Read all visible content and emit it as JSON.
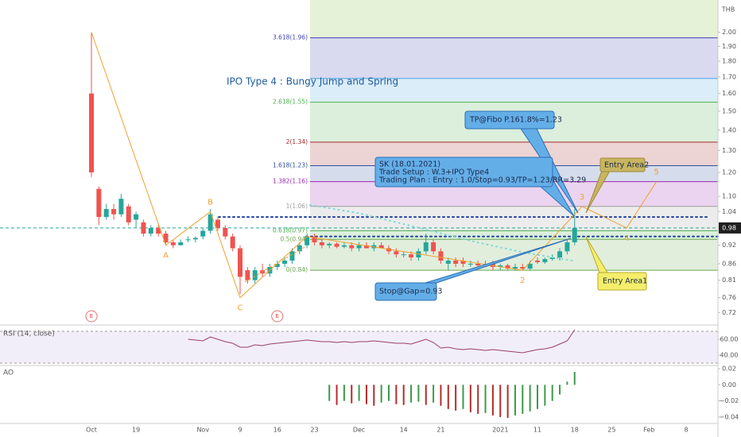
{
  "chart_data": {
    "type": "candlestick",
    "title": "IPO Type 4 : Bungy Jump and Spring",
    "currency": "THB",
    "log_scale": true,
    "up_color": "#26a69a",
    "down_color": "#ef5350",
    "categories": [
      "Oct",
      null,
      null,
      null,
      null,
      null,
      "19",
      null,
      null,
      null,
      null,
      null,
      null,
      null,
      null,
      "Nov",
      null,
      null,
      null,
      null,
      "9",
      null,
      null,
      null,
      null,
      "16",
      null,
      null,
      null,
      null,
      "23",
      null,
      null,
      null,
      null,
      null,
      "Dec",
      null,
      null,
      null,
      null,
      null,
      "14",
      null,
      null,
      null,
      null,
      "21",
      null,
      null,
      null,
      null,
      null,
      null,
      null,
      "2021",
      null,
      null,
      null,
      null,
      "11",
      null,
      null,
      null,
      null,
      "18",
      null,
      null,
      null,
      null,
      "25",
      null,
      null,
      null,
      null,
      "Feb",
      null,
      null,
      null,
      null,
      "8",
      null,
      null,
      null,
      null
    ],
    "open": [
      1.6,
      1.13,
      1.02,
      1.05,
      1.03,
      1.06,
      1.01,
      1.0,
      0.96,
      0.98,
      0.96,
      0.93,
      0.92,
      0.94,
      0.94,
      0.95,
      0.97,
      1.01,
      0.98,
      0.95,
      0.91,
      0.84,
      0.81,
      0.84,
      0.83,
      0.85,
      0.86,
      0.87,
      0.9,
      0.92,
      0.95,
      0.93,
      0.92,
      0.925,
      0.915,
      0.92,
      0.91,
      0.92,
      0.91,
      0.92,
      0.91,
      0.9,
      0.89,
      0.89,
      0.88,
      0.9,
      0.93,
      0.9,
      0.86,
      0.87,
      0.87,
      0.86,
      0.86,
      0.855,
      0.86,
      0.85,
      0.855,
      0.845,
      0.85,
      0.845,
      0.87,
      0.865,
      0.875,
      0.88,
      0.9,
      0.93,
      null,
      null,
      null,
      null,
      null,
      null,
      null,
      null,
      null,
      null,
      null,
      null,
      null,
      null,
      null,
      null,
      null,
      null,
      null
    ],
    "high": [
      2.0,
      1.14,
      1.07,
      1.07,
      1.11,
      1.07,
      1.04,
      1.01,
      0.99,
      0.99,
      0.97,
      0.94,
      0.94,
      0.95,
      0.95,
      0.98,
      1.05,
      1.02,
      0.99,
      0.96,
      0.92,
      0.85,
      0.85,
      0.86,
      0.86,
      0.87,
      0.88,
      0.91,
      0.93,
      0.96,
      0.96,
      0.94,
      0.93,
      0.93,
      0.93,
      0.93,
      0.93,
      0.93,
      0.93,
      0.93,
      0.92,
      0.91,
      0.9,
      0.9,
      0.91,
      0.96,
      0.94,
      0.91,
      0.88,
      0.88,
      0.88,
      0.87,
      0.87,
      0.87,
      0.87,
      0.86,
      0.86,
      0.86,
      0.86,
      0.87,
      0.88,
      0.88,
      0.89,
      0.91,
      0.94,
      1.05,
      null,
      null,
      null,
      null,
      null,
      null,
      null,
      null,
      null,
      null,
      null,
      null,
      null,
      null,
      null,
      null,
      null,
      null,
      null
    ],
    "low": [
      1.18,
      0.99,
      1.01,
      1.01,
      1.02,
      0.99,
      0.98,
      0.95,
      0.95,
      0.95,
      0.92,
      0.91,
      0.92,
      0.93,
      0.93,
      0.94,
      0.96,
      0.97,
      0.94,
      0.9,
      0.77,
      0.8,
      0.8,
      0.82,
      0.82,
      0.84,
      0.85,
      0.86,
      0.89,
      0.91,
      0.92,
      0.91,
      0.91,
      0.91,
      0.91,
      0.9,
      0.9,
      0.91,
      0.9,
      0.91,
      0.89,
      0.88,
      0.88,
      0.87,
      0.87,
      0.89,
      0.89,
      0.86,
      0.84,
      0.85,
      0.85,
      0.85,
      0.85,
      0.85,
      0.84,
      0.84,
      0.84,
      0.84,
      0.84,
      0.84,
      0.86,
      0.86,
      0.87,
      0.87,
      0.89,
      0.92,
      null,
      null,
      null,
      null,
      null,
      null,
      null,
      null,
      null,
      null,
      null,
      null,
      null,
      null,
      null,
      null,
      null,
      null,
      null
    ],
    "close": [
      1.2,
      1.02,
      1.05,
      1.03,
      1.09,
      1.0,
      1.03,
      0.96,
      0.98,
      0.96,
      0.93,
      0.92,
      0.93,
      0.94,
      0.945,
      0.97,
      1.03,
      0.98,
      0.95,
      0.91,
      0.82,
      0.81,
      0.84,
      0.83,
      0.85,
      0.86,
      0.87,
      0.9,
      0.92,
      0.95,
      0.93,
      0.92,
      0.925,
      0.915,
      0.92,
      0.91,
      0.92,
      0.91,
      0.92,
      0.91,
      0.9,
      0.89,
      0.89,
      0.88,
      0.9,
      0.93,
      0.9,
      0.87,
      0.87,
      0.86,
      0.86,
      0.86,
      0.855,
      0.86,
      0.85,
      0.855,
      0.845,
      0.85,
      0.845,
      0.86,
      0.865,
      0.875,
      0.88,
      0.9,
      0.93,
      0.98,
      null,
      null,
      null,
      null,
      null,
      null,
      null,
      null,
      null,
      null,
      null,
      null,
      null,
      null,
      null,
      null,
      null,
      null,
      null
    ],
    "ylim": [
      0.69,
      2.25
    ],
    "yticks": [
      {
        "value": 2.0,
        "label": "2.00"
      },
      {
        "value": 1.9,
        "label": "1.90"
      },
      {
        "value": 1.8,
        "label": "1.80"
      },
      {
        "value": 1.7,
        "label": "1.70"
      },
      {
        "value": 1.6,
        "label": "1.60"
      },
      {
        "value": 1.5,
        "label": "1.50"
      },
      {
        "value": 1.4,
        "label": "1.40"
      },
      {
        "value": 1.3,
        "label": "1.30"
      },
      {
        "value": 1.2,
        "label": "1.20"
      },
      {
        "value": 1.1,
        "label": "1.10"
      },
      1.04,
      0.92,
      0.86,
      0.81,
      0.76,
      0.72
    ],
    "current_price": 0.98,
    "fib_levels": [
      {
        "value": 1.96,
        "label": "3.618(1.96)",
        "color": "#3f3fb0"
      },
      {
        "value": 1.69,
        "color": "#4aa3df"
      },
      {
        "value": 1.55,
        "label": "2.618(1.55)",
        "color": "#4caf50"
      },
      {
        "value": 1.34,
        "label": "2(1.34)",
        "color": "#a52a2a"
      },
      {
        "value": 1.23,
        "label": "1.618(1.23)",
        "color": "#2e4f9a"
      },
      {
        "value": 1.16,
        "label": "1.382(1.16)",
        "color": "#9c27b0"
      },
      {
        "value": 1.06,
        "label": "1(1.06)",
        "color": "#9e9e9e"
      },
      {
        "value": 0.97,
        "label": "0.618(0.97)",
        "color": "#4caf50"
      },
      {
        "value": 0.94,
        "label": "0.5(0.94)",
        "color": "#6aa84f"
      },
      {
        "value": 0.84,
        "label": "0(0.84)",
        "color": "#6aa84f"
      }
    ],
    "hlines": [
      {
        "value": 1.02,
        "color": "#1e3fa0"
      },
      {
        "value": 0.95,
        "color": "#1e3fa0"
      }
    ],
    "wave": {
      "x": [
        0,
        10,
        16,
        20,
        29,
        58,
        66,
        72,
        76
      ],
      "values": [
        2.0,
        0.92,
        1.04,
        0.76,
        0.95,
        0.84,
        1.06,
        0.98,
        1.16
      ],
      "labels": [
        null,
        "A",
        "B",
        "C",
        null,
        "2",
        "3",
        "4",
        "5"
      ],
      "color": "#f0a030"
    },
    "earnings": {
      "x": [
        0,
        25
      ],
      "labels": [
        "E",
        "E"
      ]
    },
    "callouts": [
      {
        "lines": [
          "TP@Fibo P.161.8%=1.23"
        ]
      },
      {
        "lines": [
          "SK (18.01.2021)",
          "Trade Setup : W.3+IPO Type4",
          "Trading Plan : Entry : 1.0/Stop=0.93/TP=1.23/RR=3.29"
        ]
      },
      {
        "lines": [
          "Entry Area2"
        ]
      },
      {
        "lines": [
          "Entry Area1"
        ]
      },
      {
        "lines": [
          "Stop@Gap=0.93"
        ]
      }
    ],
    "indicators": [
      {
        "type": "line",
        "title": "RSI (14, close)",
        "color": "#9c3d6b",
        "band": [
          30,
          70
        ],
        "ylim": [
          29,
          74
        ],
        "yticks": [
          {
            "value": 60,
            "label": "60.00"
          },
          {
            "value": 40,
            "label": "40.00"
          }
        ],
        "values": [
          null,
          null,
          null,
          null,
          null,
          null,
          null,
          null,
          null,
          null,
          null,
          null,
          null,
          60,
          59,
          58,
          63,
          60,
          57,
          55,
          50,
          50,
          53,
          52,
          54,
          55,
          56,
          57,
          58,
          59,
          58,
          57,
          57,
          56,
          57,
          56,
          57,
          57,
          58,
          57,
          56,
          55,
          55,
          54,
          57,
          60,
          56,
          49,
          50,
          48,
          47,
          48,
          47,
          46,
          47,
          46,
          45,
          44,
          43,
          45,
          47,
          48,
          50,
          54,
          58,
          72,
          null,
          null,
          null,
          null,
          null,
          null,
          null,
          null,
          null,
          null,
          null,
          null,
          null,
          null,
          null,
          null,
          null,
          null,
          null
        ]
      },
      {
        "type": "bar",
        "title": "AO",
        "up_color": "#3d9a4a",
        "down_color": "#b52b2b",
        "ylim": [
          -0.047,
          0.022
        ],
        "yticks": [
          0.02,
          {
            "value": 0,
            "label": "0.00"
          },
          {
            "value": -0.02,
            "label": "−0.02"
          },
          {
            "value": -0.04,
            "label": "−0.04"
          }
        ],
        "values": [
          null,
          null,
          null,
          null,
          null,
          null,
          null,
          null,
          null,
          null,
          null,
          null,
          null,
          null,
          null,
          null,
          null,
          null,
          null,
          null,
          null,
          null,
          null,
          null,
          null,
          null,
          null,
          null,
          null,
          null,
          null,
          null,
          -0.02,
          -0.025,
          -0.02,
          -0.023,
          -0.02,
          -0.024,
          -0.026,
          -0.022,
          -0.02,
          -0.024,
          -0.025,
          -0.022,
          -0.021,
          -0.025,
          -0.022,
          -0.026,
          -0.03,
          -0.032,
          -0.03,
          -0.034,
          -0.036,
          -0.035,
          -0.038,
          -0.04,
          -0.041,
          -0.038,
          -0.036,
          -0.033,
          -0.03,
          -0.026,
          -0.02,
          -0.012,
          0.004,
          0.016,
          null,
          null,
          null,
          null,
          null,
          null,
          null,
          null,
          null,
          null,
          null,
          null,
          null,
          null,
          null,
          null,
          null,
          null,
          null
        ]
      }
    ]
  }
}
